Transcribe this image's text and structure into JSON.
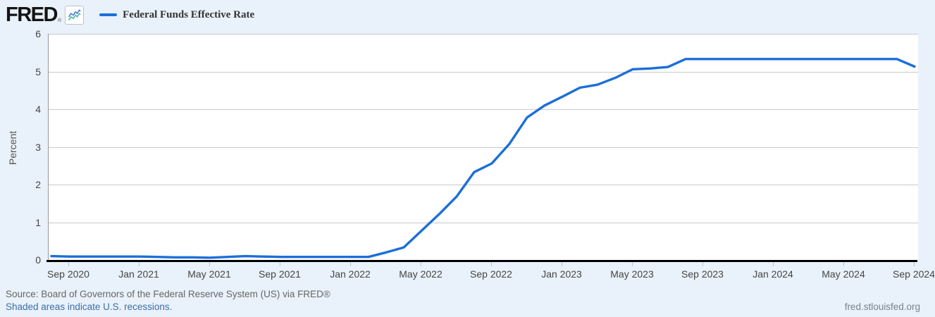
{
  "header": {
    "logo_text": "FRED",
    "logo_reg_mark": "®",
    "logo_chart_icon": "line-chart-icon",
    "legend": {
      "label": "Federal Funds Effective Rate",
      "swatch_color": "#1b6fd8"
    }
  },
  "footer": {
    "source_line": "Source: Board of Governors of the Federal Reserve System (US) via FRED®",
    "recessions_link": "Shaded areas indicate U.S. recessions.",
    "site_url": "fred.stlouisfed.org"
  },
  "colors": {
    "page_background": "#e9f1fa",
    "plot_background": "#ffffff",
    "gridline": "#c9c9c9",
    "axis_line": "#000000",
    "y_axis_line": "#999999",
    "series_line": "#1b6fd8",
    "tick_label": "#454545",
    "link_blue": "#3a6fa8"
  },
  "chart_data": {
    "type": "line",
    "title": "Federal Funds Effective Rate",
    "ylabel": "Percent",
    "xlabel": "",
    "ylim": [
      0,
      6
    ],
    "y_ticks": [
      0,
      1,
      2,
      3,
      4,
      5,
      6
    ],
    "grid": true,
    "legend_position": "top-left",
    "x": [
      "2020-08",
      "2020-09",
      "2020-10",
      "2020-11",
      "2020-12",
      "2021-01",
      "2021-02",
      "2021-03",
      "2021-04",
      "2021-05",
      "2021-06",
      "2021-07",
      "2021-08",
      "2021-09",
      "2021-10",
      "2021-11",
      "2021-12",
      "2022-01",
      "2022-02",
      "2022-03",
      "2022-04",
      "2022-05",
      "2022-06",
      "2022-07",
      "2022-08",
      "2022-09",
      "2022-10",
      "2022-11",
      "2022-12",
      "2023-01",
      "2023-02",
      "2023-03",
      "2023-04",
      "2023-05",
      "2023-06",
      "2023-07",
      "2023-08",
      "2023-09",
      "2023-10",
      "2023-11",
      "2023-12",
      "2024-01",
      "2024-02",
      "2024-03",
      "2024-04",
      "2024-05",
      "2024-06",
      "2024-07",
      "2024-08",
      "2024-09"
    ],
    "series": [
      {
        "name": "Federal Funds Effective Rate",
        "color": "#1b6fd8",
        "values": [
          0.1,
          0.09,
          0.09,
          0.09,
          0.09,
          0.09,
          0.08,
          0.07,
          0.07,
          0.06,
          0.08,
          0.1,
          0.09,
          0.08,
          0.08,
          0.08,
          0.08,
          0.08,
          0.08,
          0.2,
          0.33,
          0.77,
          1.21,
          1.68,
          2.33,
          2.56,
          3.08,
          3.78,
          4.1,
          4.33,
          4.57,
          4.65,
          4.83,
          5.06,
          5.08,
          5.12,
          5.33,
          5.33,
          5.33,
          5.33,
          5.33,
          5.33,
          5.33,
          5.33,
          5.33,
          5.33,
          5.33,
          5.33,
          5.33,
          5.13
        ]
      }
    ],
    "x_tick_indices": [
      1,
      5,
      9,
      13,
      17,
      21,
      25,
      29,
      33,
      37,
      41,
      45,
      49
    ],
    "x_tick_labels": [
      "Sep 2020",
      "Jan 2021",
      "May 2021",
      "Sep 2021",
      "Jan 2022",
      "May 2022",
      "Sep 2022",
      "Jan 2023",
      "May 2023",
      "Sep 2023",
      "Jan 2024",
      "May 2024",
      "Sep 2024"
    ]
  }
}
